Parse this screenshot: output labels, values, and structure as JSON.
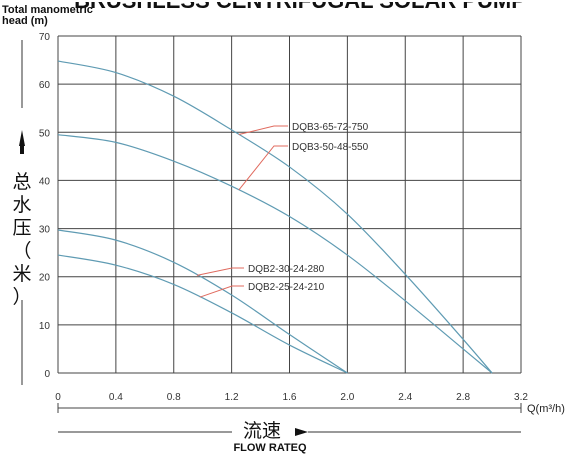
{
  "chart_data": {
    "type": "line",
    "title_banner": "BRUSHLESS CENTRIFUGAL SOLAR PUMP",
    "ylabel_en_line1": "Total manometric",
    "ylabel_en_line2": "head (m)",
    "ylabel_cn_chars": [
      "总",
      "水",
      "压",
      "（",
      "米",
      "）"
    ],
    "xlabel_cn": "流速",
    "xlabel_en": "FLOW RATEQ",
    "x_unit": "Q(m³/h)",
    "xlim": [
      0,
      3.2
    ],
    "ylim": [
      0,
      70
    ],
    "x_ticks": [
      "0",
      "0.4",
      "0.8",
      "1.2",
      "1.6",
      "2.0",
      "2.4",
      "2.8",
      "3.2"
    ],
    "y_ticks": [
      "0",
      "10",
      "20",
      "30",
      "40",
      "50",
      "60",
      "70"
    ],
    "grid": true,
    "line_color": "#5f9bb3",
    "leader_color": "#e06a5e",
    "series": [
      {
        "name": "DQB3-65-72-750",
        "x": [
          0,
          0.4,
          0.8,
          1.2,
          1.6,
          2.0,
          2.4,
          2.8,
          3.0
        ],
        "y": [
          64.8,
          62.4,
          57.5,
          50.5,
          42.8,
          33.0,
          20.5,
          7.0,
          0
        ]
      },
      {
        "name": "DQB3-50-48-550",
        "x": [
          0,
          0.4,
          0.8,
          1.2,
          1.6,
          2.0,
          2.4,
          2.8,
          3.0
        ],
        "y": [
          49.5,
          47.9,
          44.0,
          38.8,
          32.5,
          24.5,
          15.0,
          5.0,
          0
        ]
      },
      {
        "name": "DQB2-30-24-280",
        "x": [
          0,
          0.4,
          0.8,
          1.2,
          1.6,
          2.0
        ],
        "y": [
          29.7,
          27.6,
          23.0,
          16.2,
          8.0,
          0
        ]
      },
      {
        "name": "DQB2-25-24-210",
        "x": [
          0,
          0.4,
          0.8,
          1.2,
          1.6,
          2.0
        ],
        "y": [
          24.5,
          22.4,
          18.4,
          12.5,
          5.8,
          0
        ]
      }
    ],
    "annotations": [
      {
        "series": 0,
        "text": "DQB3-65-72-750",
        "at_x": 1.25
      },
      {
        "series": 1,
        "text": "DQB3-50-48-550",
        "at_x": 1.25
      },
      {
        "series": 2,
        "text": "DQB2-30-24-280",
        "at_x": 0.96
      },
      {
        "series": 3,
        "text": "DQB2-25-24-210",
        "at_x": 0.98
      }
    ]
  }
}
